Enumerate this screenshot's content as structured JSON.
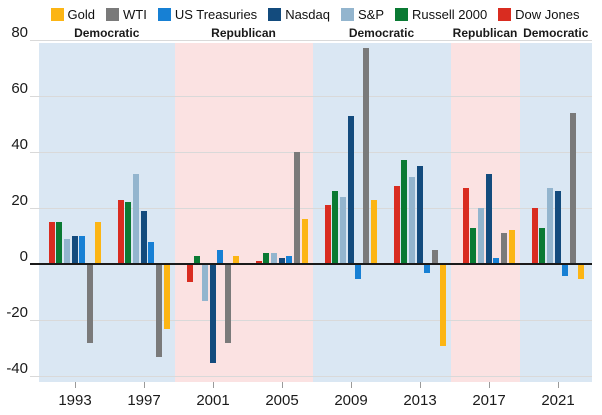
{
  "legend": {
    "items": [
      {
        "label": "Gold",
        "color": "#FCB514"
      },
      {
        "label": "WTI",
        "color": "#7A7A7A"
      },
      {
        "label": "US Treasuries",
        "color": "#1780D4"
      },
      {
        "label": "Nasdaq",
        "color": "#134B7D"
      },
      {
        "label": "S&P",
        "color": "#93B5CE"
      },
      {
        "label": "Russell 2000",
        "color": "#0A7A33"
      },
      {
        "label": "Dow Jones",
        "color": "#D92C20"
      }
    ]
  },
  "chart_data": {
    "type": "bar",
    "title": "",
    "categories": [
      "1993",
      "1997",
      "2001",
      "2005",
      "2009",
      "2013",
      "2017",
      "2021"
    ],
    "series": [
      {
        "name": "Dow Jones",
        "color": "#D92C20",
        "values": [
          15,
          23,
          -6,
          1,
          21,
          28,
          27,
          20
        ]
      },
      {
        "name": "Russell 2000",
        "color": "#0A7A33",
        "values": [
          15,
          22,
          3,
          4,
          26,
          37,
          13,
          13
        ]
      },
      {
        "name": "S&P",
        "color": "#93B5CE",
        "values": [
          9,
          32,
          -13,
          4,
          24,
          31,
          20,
          27
        ]
      },
      {
        "name": "Nasdaq",
        "color": "#134B7D",
        "values": [
          10,
          19,
          -35,
          2,
          53,
          35,
          32,
          26
        ]
      },
      {
        "name": "US Treasuries",
        "color": "#1780D4",
        "values": [
          10,
          8,
          5,
          3,
          -5,
          -3,
          2,
          -4
        ]
      },
      {
        "name": "WTI",
        "color": "#7A7A7A",
        "values": [
          -28,
          -33,
          -28,
          40,
          77,
          5,
          11,
          54
        ]
      },
      {
        "name": "Gold",
        "color": "#FCB514",
        "values": [
          15,
          -23,
          3,
          16,
          23,
          -29,
          12,
          -5
        ]
      }
    ],
    "y_ticks": [
      80,
      60,
      40,
      20,
      0,
      -20,
      -40
    ],
    "ylim": [
      -40,
      80
    ],
    "grid": "horizontal",
    "legend_position": "top",
    "bands": [
      {
        "label": "Democratic",
        "color": "#DAE7F3",
        "first_term": 0,
        "last_term": 1
      },
      {
        "label": "Republican",
        "color": "#FBE2E2",
        "first_term": 2,
        "last_term": 3
      },
      {
        "label": "Democratic",
        "color": "#DAE7F3",
        "first_term": 4,
        "last_term": 5
      },
      {
        "label": "Republican",
        "color": "#FBE2E2",
        "first_term": 6,
        "last_term": 6
      },
      {
        "label": "Democratic",
        "color": "#DAE7F3",
        "first_term": 7,
        "last_term": 7
      }
    ]
  }
}
